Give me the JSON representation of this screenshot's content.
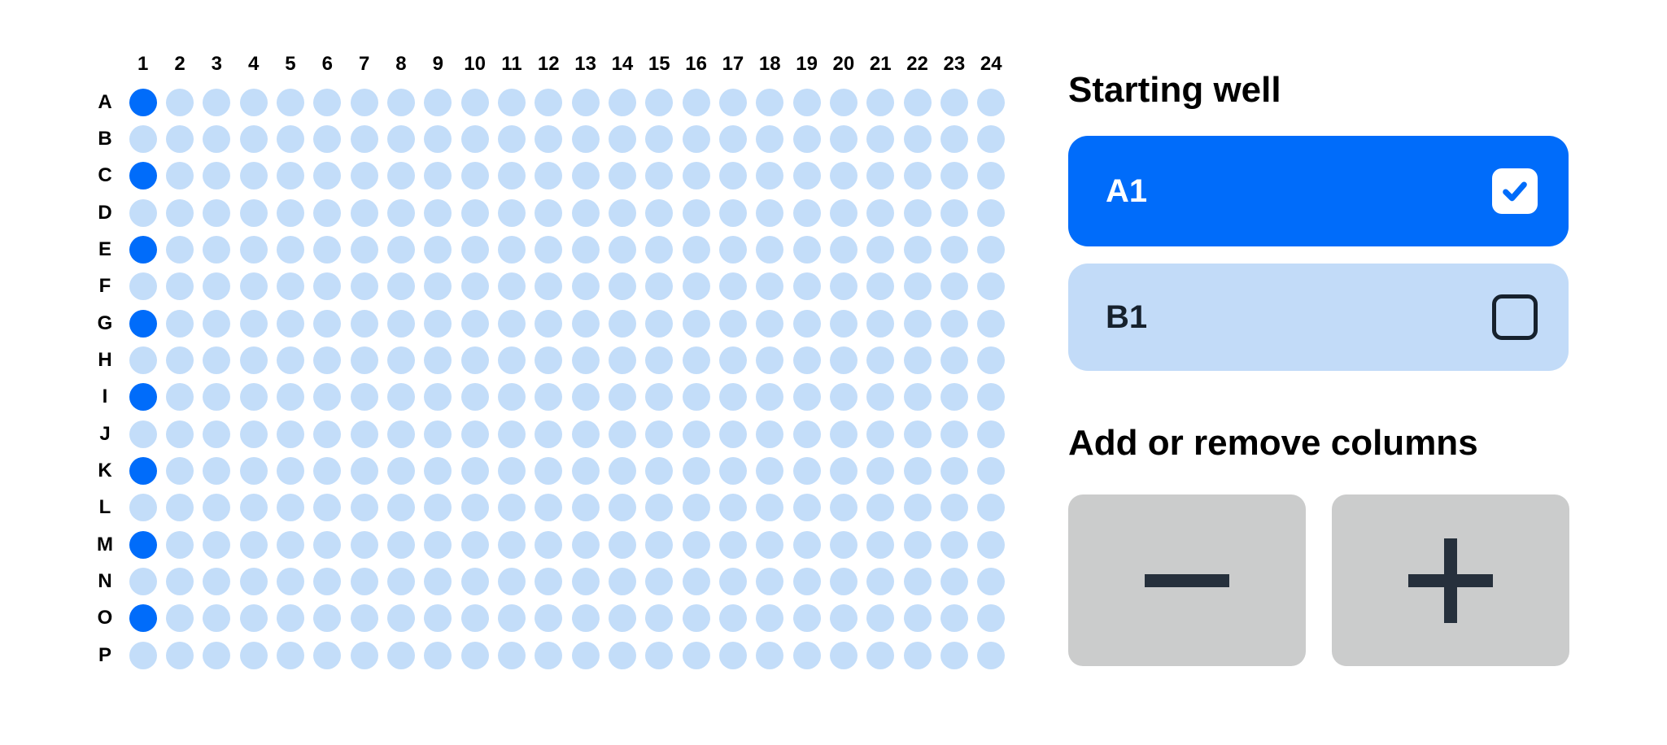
{
  "plate": {
    "columns": [
      "1",
      "2",
      "3",
      "4",
      "5",
      "6",
      "7",
      "8",
      "9",
      "10",
      "11",
      "12",
      "13",
      "14",
      "15",
      "16",
      "17",
      "18",
      "19",
      "20",
      "21",
      "22",
      "23",
      "24"
    ],
    "rows": [
      "A",
      "B",
      "C",
      "D",
      "E",
      "F",
      "G",
      "H",
      "I",
      "J",
      "K",
      "L",
      "M",
      "N",
      "O",
      "P"
    ],
    "selected_wells": [
      "A1",
      "C1",
      "E1",
      "G1",
      "I1",
      "K1",
      "M1",
      "O1"
    ]
  },
  "starting_well": {
    "title": "Starting well",
    "options": [
      {
        "label": "A1",
        "checked": true
      },
      {
        "label": "B1",
        "checked": false
      }
    ]
  },
  "column_controls": {
    "title": "Add or remove columns",
    "remove_icon": "minus-icon",
    "add_icon": "plus-icon"
  },
  "colors": {
    "accent_blue": "#006cfa",
    "well_light_blue": "#c3ddf9",
    "card_light_blue": "#c2dbf8",
    "button_gray": "#cbcccc",
    "icon_dark": "#26303c",
    "checkbox_border_dark": "#16212d",
    "text_black": "#000000"
  }
}
